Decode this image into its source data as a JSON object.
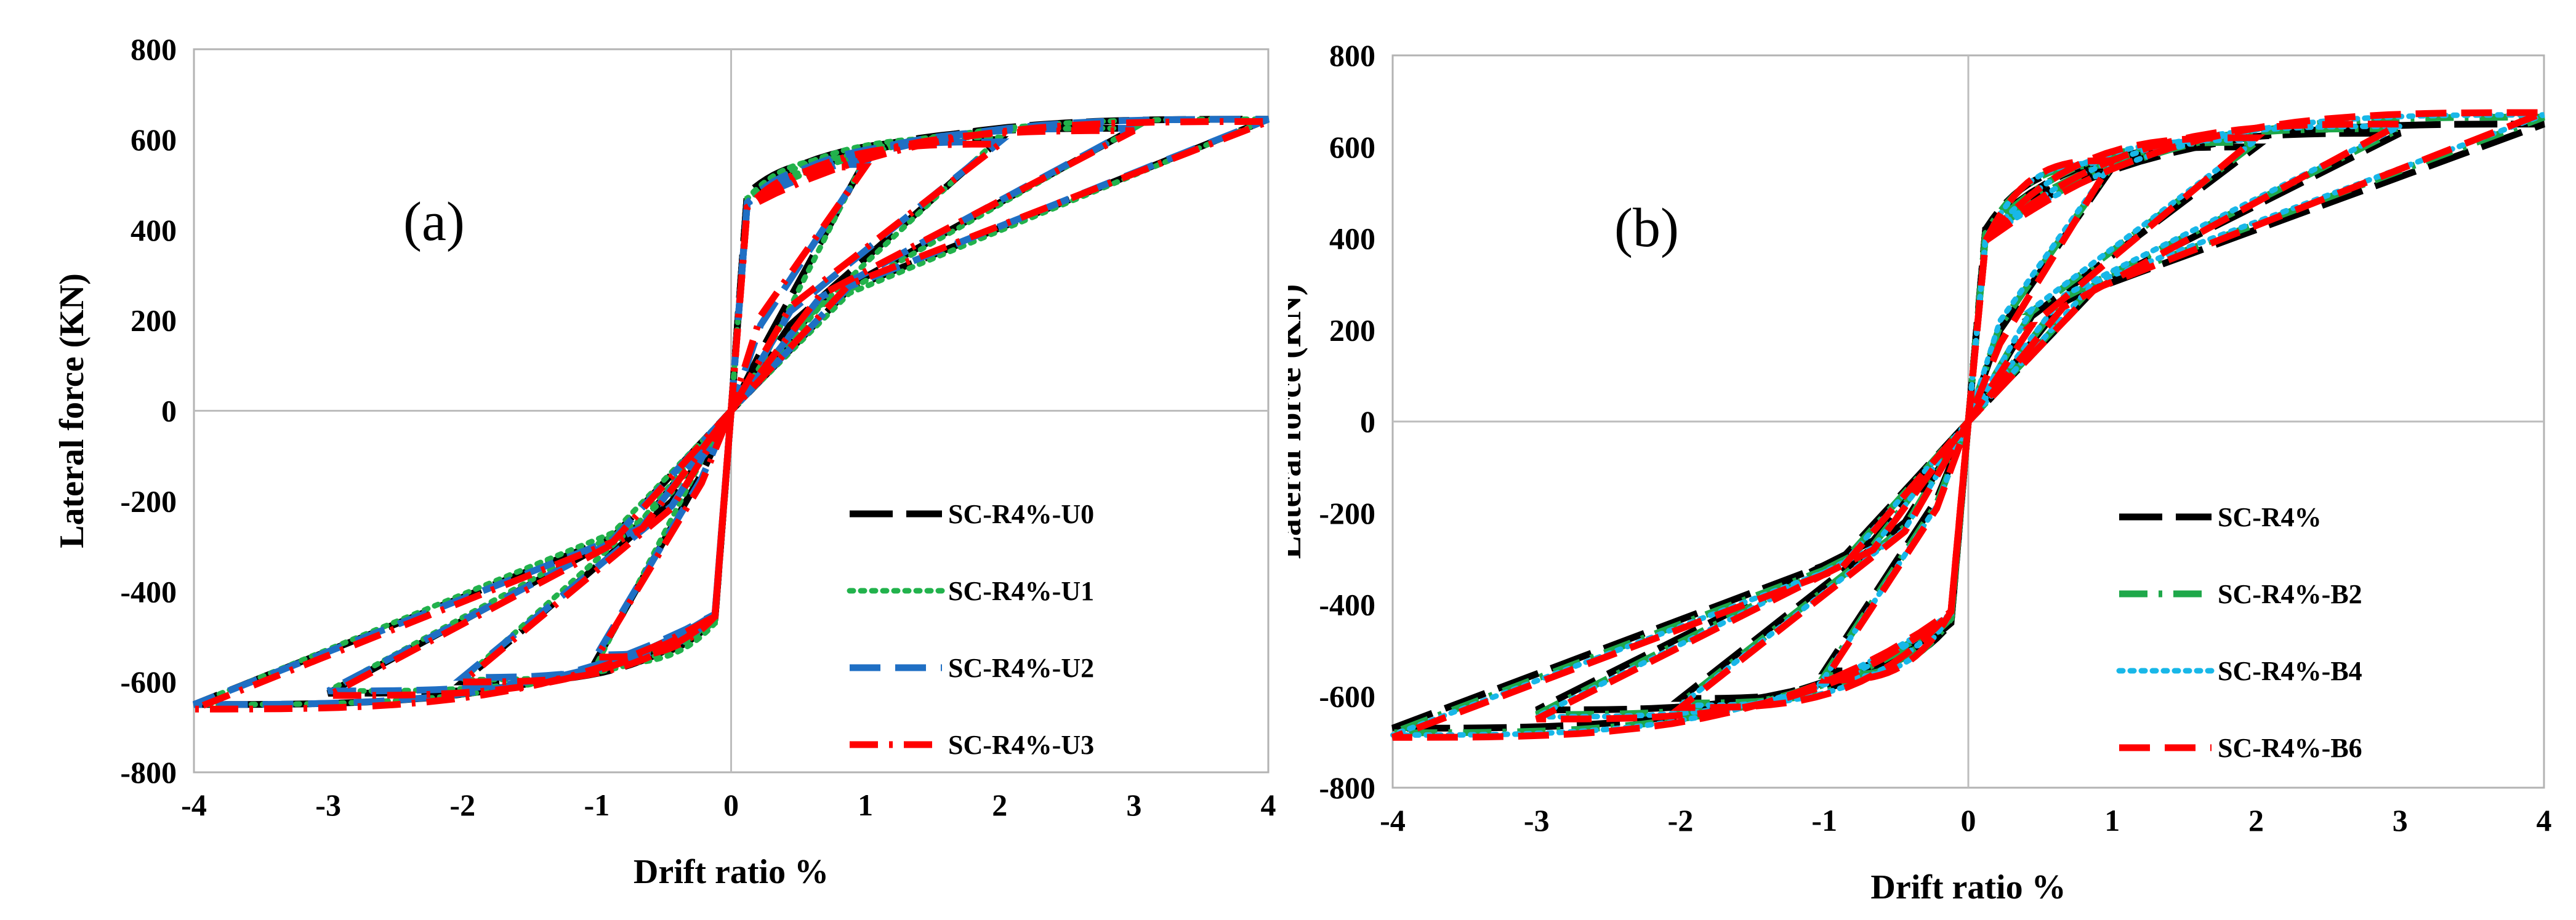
{
  "chart_data": [
    {
      "type": "line",
      "panel_label": "(a)",
      "xlabel": "Drift ratio %",
      "ylabel": "Lateral force (KN)",
      "xlim": [
        -4,
        4
      ],
      "ylim": [
        -800,
        800
      ],
      "xticks": [
        -4,
        -3,
        -2,
        -1,
        0,
        1,
        2,
        3,
        4
      ],
      "yticks": [
        -800,
        -600,
        -400,
        -200,
        0,
        200,
        400,
        600,
        800
      ],
      "legend_position": "bottom-right",
      "cycles": [
        1,
        2,
        3,
        4
      ],
      "series": [
        {
          "name": "SC-R4%-U0",
          "color": "#000000",
          "style": "longdash",
          "peak_pos": [
            555,
            600,
            625,
            645
          ],
          "peak_neg": [
            -550,
            -600,
            -625,
            -650
          ],
          "unload_pos": [
            130,
            190,
            240,
            270
          ],
          "unload_neg": [
            -140,
            -200,
            -250,
            -280
          ],
          "yield_pos": 480,
          "yield_neg": -460
        },
        {
          "name": "SC-R4%-U1",
          "color": "#22b24c",
          "style": "dotted",
          "peak_pos": [
            560,
            605,
            625,
            645
          ],
          "peak_neg": [
            -560,
            -595,
            -620,
            -650
          ],
          "unload_pos": [
            100,
            170,
            230,
            260
          ],
          "unload_neg": [
            -110,
            -180,
            -240,
            -270
          ],
          "yield_pos": 470,
          "yield_neg": -470
        },
        {
          "name": "SC-R4%-U2",
          "color": "#1f6fc4",
          "style": "dash",
          "peak_pos": [
            545,
            595,
            625,
            645
          ],
          "peak_neg": [
            -540,
            -590,
            -620,
            -650
          ],
          "unload_pos": [
            190,
            220,
            250,
            275
          ],
          "unload_neg": [
            -150,
            -210,
            -255,
            -285
          ],
          "yield_pos": 460,
          "yield_neg": -450
        },
        {
          "name": "SC-R4%-U3",
          "color": "#ff0000",
          "style": "dashdot",
          "peak_pos": [
            540,
            590,
            620,
            640
          ],
          "peak_neg": [
            -545,
            -600,
            -630,
            -660
          ],
          "unload_pos": [
            210,
            230,
            255,
            280
          ],
          "unload_neg": [
            -160,
            -215,
            -260,
            -290
          ],
          "yield_pos": 450,
          "yield_neg": -455
        }
      ]
    },
    {
      "type": "line",
      "panel_label": "(b)",
      "xlabel": "Drift ratio %",
      "ylabel": "Lateral force (KN)",
      "xlim": [
        -4,
        4
      ],
      "ylim": [
        -800,
        800
      ],
      "xticks": [
        -4,
        -3,
        -2,
        -1,
        0,
        1,
        2,
        3,
        4
      ],
      "yticks": [
        -800,
        -600,
        -400,
        -200,
        0,
        200,
        400,
        600,
        800
      ],
      "legend_position": "bottom-right",
      "cycles": [
        1,
        2,
        3,
        4
      ],
      "series": [
        {
          "name": "SC-R4%",
          "color": "#000000",
          "style": "longdash",
          "peak_pos": [
            555,
            600,
            630,
            650
          ],
          "peak_neg": [
            -545,
            -605,
            -630,
            -670
          ],
          "unload_pos": [
            200,
            230,
            260,
            290
          ],
          "unload_neg": [
            -170,
            -220,
            -260,
            -300
          ],
          "yield_pos": 420,
          "yield_neg": -440
        },
        {
          "name": "SC-R4%-B2",
          "color": "#1fa84a",
          "style": "dashdot",
          "peak_pos": [
            560,
            610,
            640,
            665
          ],
          "peak_neg": [
            -555,
            -615,
            -640,
            -680
          ],
          "unload_pos": [
            210,
            240,
            270,
            300
          ],
          "unload_neg": [
            -180,
            -230,
            -270,
            -310
          ],
          "yield_pos": 410,
          "yield_neg": -430
        },
        {
          "name": "SC-R4%-B4",
          "color": "#18b7e8",
          "style": "dotted",
          "peak_pos": [
            565,
            615,
            645,
            670
          ],
          "peak_neg": [
            -560,
            -620,
            -645,
            -685
          ],
          "unload_pos": [
            220,
            245,
            275,
            305
          ],
          "unload_neg": [
            -185,
            -235,
            -275,
            -315
          ],
          "yield_pos": 400,
          "yield_neg": -420
        },
        {
          "name": "SC-R4%-B6",
          "color": "#ff0000",
          "style": "dash",
          "peak_pos": [
            570,
            620,
            650,
            675
          ],
          "peak_neg": [
            -565,
            -625,
            -650,
            -690
          ],
          "unload_pos": [
            170,
            210,
            250,
            290
          ],
          "unload_neg": [
            -190,
            -240,
            -280,
            -320
          ],
          "yield_pos": 395,
          "yield_neg": -415
        }
      ]
    }
  ]
}
